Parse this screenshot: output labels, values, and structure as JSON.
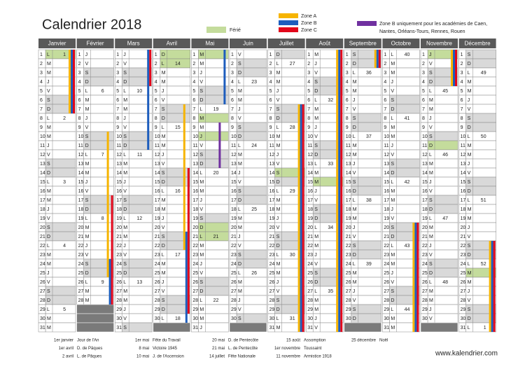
{
  "header": {
    "title": "Calendrier 2018",
    "website": "www.kalendrier.com"
  },
  "legend": {
    "holiday": {
      "label": "Férié",
      "color": "#c4dc9c"
    },
    "zones": [
      {
        "lines": [
          "Zone A"
        ],
        "color": "#f6b400"
      },
      {
        "lines": [
          "Zone B"
        ],
        "color": "#1d5dbd"
      },
      {
        "lines": [
          "Zone C"
        ],
        "color": "#e2071b"
      },
      {
        "lines": [
          "Zone B uniquement pour les académies de Caen,",
          "Nantes, Orléans-Tours, Rennes, Rouen"
        ],
        "color": "#7030a0"
      }
    ]
  },
  "calendar": {
    "weekend_color": "#d9d9d9",
    "empty_color": "#7a7a7a",
    "header_color": "#595959",
    "day_numbers": [
      1,
      2,
      3,
      4,
      5,
      6,
      7,
      8,
      9,
      10,
      11,
      12,
      13,
      14,
      15,
      16,
      17,
      18,
      19,
      20,
      21,
      22,
      23,
      24,
      25,
      26,
      27,
      28,
      29,
      30,
      31
    ],
    "months": [
      {
        "name": "Janvier",
        "weekdays": [
          "L",
          "M",
          "M",
          "J",
          "V",
          "S",
          "D",
          "L",
          "M",
          "M",
          "J",
          "V",
          "S",
          "D",
          "L",
          "M",
          "M",
          "J",
          "V",
          "S",
          "D",
          "L",
          "M",
          "M",
          "J",
          "V",
          "S",
          "D",
          "L",
          "M",
          "M"
        ],
        "week_numbers": [
          1,
          null,
          null,
          null,
          null,
          null,
          null,
          2,
          null,
          null,
          null,
          null,
          null,
          null,
          3,
          null,
          null,
          null,
          null,
          null,
          null,
          4,
          null,
          null,
          null,
          null,
          null,
          null,
          5,
          null,
          null
        ],
        "holidays": [
          1
        ],
        "vacations": [
          {
            "zone": 0,
            "from": 1,
            "to": 7
          },
          {
            "zone": 1,
            "from": 1,
            "to": 7
          },
          {
            "zone": 2,
            "from": 1,
            "to": 7
          }
        ]
      },
      {
        "name": "Février",
        "weekdays": [
          "J",
          "V",
          "S",
          "D",
          "L",
          "M",
          "M",
          "J",
          "V",
          "S",
          "D",
          "L",
          "M",
          "M",
          "J",
          "V",
          "S",
          "D",
          "L",
          "M",
          "M",
          "J",
          "V",
          "S",
          "D",
          "L",
          "M",
          "M"
        ],
        "week_numbers": [
          null,
          null,
          null,
          null,
          6,
          null,
          null,
          null,
          null,
          null,
          null,
          7,
          null,
          null,
          null,
          null,
          null,
          null,
          8,
          null,
          null,
          null,
          null,
          null,
          null,
          9,
          null,
          null
        ],
        "holidays": [],
        "vacations": [
          {
            "zone": 0,
            "from": 10,
            "to": 25
          },
          {
            "zone": 1,
            "from": 24,
            "to": 28
          },
          {
            "zone": 2,
            "from": 17,
            "to": 28
          }
        ]
      },
      {
        "name": "Mars",
        "weekdays": [
          "J",
          "V",
          "S",
          "D",
          "L",
          "M",
          "M",
          "J",
          "V",
          "S",
          "D",
          "L",
          "M",
          "M",
          "J",
          "V",
          "S",
          "D",
          "L",
          "M",
          "M",
          "J",
          "V",
          "S",
          "D",
          "L",
          "M",
          "M",
          "J",
          "V",
          "S"
        ],
        "week_numbers": [
          null,
          null,
          null,
          null,
          10,
          null,
          null,
          null,
          null,
          null,
          null,
          11,
          null,
          null,
          null,
          null,
          null,
          null,
          12,
          null,
          null,
          null,
          null,
          null,
          null,
          13,
          null,
          null,
          null,
          null,
          null
        ],
        "holidays": [],
        "vacations": [
          {
            "zone": 1,
            "from": 1,
            "to": 11
          },
          {
            "zone": 2,
            "from": 1,
            "to": 4
          }
        ]
      },
      {
        "name": "Avril",
        "weekdays": [
          "D",
          "L",
          "M",
          "M",
          "J",
          "V",
          "S",
          "D",
          "L",
          "M",
          "M",
          "J",
          "V",
          "S",
          "D",
          "L",
          "M",
          "M",
          "J",
          "V",
          "S",
          "D",
          "L",
          "M",
          "M",
          "J",
          "V",
          "S",
          "D",
          "L"
        ],
        "week_numbers": [
          null,
          14,
          null,
          null,
          null,
          null,
          null,
          null,
          15,
          null,
          null,
          null,
          null,
          null,
          null,
          16,
          null,
          null,
          null,
          null,
          null,
          null,
          17,
          null,
          null,
          null,
          null,
          null,
          null,
          18
        ],
        "holidays": [
          1,
          2
        ],
        "vacations": [
          {
            "zone": 0,
            "from": 7,
            "to": 22
          },
          {
            "zone": 1,
            "from": 21,
            "to": 30
          },
          {
            "zone": 2,
            "from": 14,
            "to": 29
          }
        ]
      },
      {
        "name": "Mai",
        "weekdays": [
          "M",
          "M",
          "J",
          "V",
          "S",
          "D",
          "L",
          "M",
          "M",
          "J",
          "V",
          "S",
          "D",
          "L",
          "M",
          "M",
          "J",
          "V",
          "S",
          "D",
          "L",
          "M",
          "M",
          "J",
          "V",
          "S",
          "D",
          "L",
          "M",
          "M",
          "J"
        ],
        "week_numbers": [
          null,
          null,
          null,
          null,
          null,
          null,
          19,
          null,
          null,
          null,
          null,
          null,
          null,
          20,
          null,
          null,
          null,
          null,
          null,
          null,
          21,
          null,
          null,
          null,
          null,
          null,
          null,
          22,
          null,
          null,
          null
        ],
        "holidays": [
          1,
          8,
          10,
          20,
          21
        ],
        "vacations": [
          {
            "zone": 1,
            "from": 1,
            "to": 6
          },
          {
            "zone": 3,
            "from": 9,
            "to": 13
          }
        ]
      },
      {
        "name": "Juin",
        "weekdays": [
          "V",
          "S",
          "D",
          "L",
          "M",
          "M",
          "J",
          "V",
          "S",
          "D",
          "L",
          "M",
          "M",
          "J",
          "V",
          "S",
          "D",
          "L",
          "M",
          "M",
          "J",
          "V",
          "S",
          "D",
          "L",
          "M",
          "M",
          "J",
          "V",
          "S"
        ],
        "week_numbers": [
          null,
          null,
          null,
          23,
          null,
          null,
          null,
          null,
          null,
          null,
          24,
          null,
          null,
          null,
          null,
          null,
          null,
          25,
          null,
          null,
          null,
          null,
          null,
          null,
          26,
          null,
          null,
          null,
          null,
          null
        ],
        "holidays": [],
        "vacations": []
      },
      {
        "name": "Juillet",
        "weekdays": [
          "D",
          "L",
          "M",
          "M",
          "J",
          "V",
          "S",
          "D",
          "L",
          "M",
          "M",
          "J",
          "V",
          "S",
          "D",
          "L",
          "M",
          "M",
          "J",
          "V",
          "S",
          "D",
          "L",
          "M",
          "M",
          "J",
          "V",
          "S",
          "D",
          "L",
          "M"
        ],
        "week_numbers": [
          null,
          27,
          null,
          null,
          null,
          null,
          null,
          null,
          28,
          null,
          null,
          null,
          null,
          null,
          null,
          29,
          null,
          null,
          null,
          null,
          null,
          null,
          30,
          null,
          null,
          null,
          null,
          null,
          null,
          31,
          null
        ],
        "holidays": [
          14
        ],
        "vacations": [
          {
            "zone": 0,
            "from": 7,
            "to": 31
          },
          {
            "zone": 1,
            "from": 7,
            "to": 31
          },
          {
            "zone": 2,
            "from": 7,
            "to": 31
          }
        ]
      },
      {
        "name": "Août",
        "weekdays": [
          "M",
          "J",
          "V",
          "S",
          "D",
          "L",
          "M",
          "M",
          "J",
          "V",
          "S",
          "D",
          "L",
          "M",
          "M",
          "J",
          "V",
          "S",
          "D",
          "L",
          "M",
          "M",
          "J",
          "V",
          "S",
          "D",
          "L",
          "M",
          "M",
          "J",
          "V"
        ],
        "week_numbers": [
          null,
          null,
          null,
          null,
          null,
          32,
          null,
          null,
          null,
          null,
          null,
          null,
          33,
          null,
          null,
          null,
          null,
          null,
          null,
          34,
          null,
          null,
          null,
          null,
          null,
          null,
          35,
          null,
          null,
          null,
          null
        ],
        "holidays": [
          15
        ],
        "vacations": [
          {
            "zone": 0,
            "from": 1,
            "to": 31
          },
          {
            "zone": 1,
            "from": 1,
            "to": 31
          },
          {
            "zone": 2,
            "from": 1,
            "to": 31
          }
        ]
      },
      {
        "name": "Septembre",
        "weekdays": [
          "S",
          "D",
          "L",
          "M",
          "M",
          "J",
          "V",
          "S",
          "D",
          "L",
          "M",
          "M",
          "J",
          "V",
          "S",
          "D",
          "L",
          "M",
          "M",
          "J",
          "V",
          "S",
          "D",
          "L",
          "M",
          "M",
          "J",
          "V",
          "S",
          "D"
        ],
        "week_numbers": [
          null,
          null,
          36,
          null,
          null,
          null,
          null,
          null,
          null,
          37,
          null,
          null,
          null,
          null,
          null,
          null,
          38,
          null,
          null,
          null,
          null,
          null,
          null,
          39,
          null,
          null,
          null,
          null,
          null,
          null
        ],
        "holidays": [],
        "vacations": [
          {
            "zone": 0,
            "from": 1,
            "to": 2
          },
          {
            "zone": 1,
            "from": 1,
            "to": 2
          },
          {
            "zone": 2,
            "from": 1,
            "to": 2
          }
        ]
      },
      {
        "name": "Octobre",
        "weekdays": [
          "L",
          "M",
          "M",
          "J",
          "V",
          "S",
          "D",
          "L",
          "M",
          "M",
          "J",
          "V",
          "S",
          "D",
          "L",
          "M",
          "M",
          "J",
          "V",
          "S",
          "D",
          "L",
          "M",
          "M",
          "J",
          "V",
          "S",
          "D",
          "L",
          "M",
          "M"
        ],
        "week_numbers": [
          40,
          null,
          null,
          null,
          null,
          null,
          null,
          41,
          null,
          null,
          null,
          null,
          null,
          null,
          42,
          null,
          null,
          null,
          null,
          null,
          null,
          43,
          null,
          null,
          null,
          null,
          null,
          null,
          44,
          null,
          null
        ],
        "holidays": [],
        "vacations": [
          {
            "zone": 0,
            "from": 20,
            "to": 31
          },
          {
            "zone": 1,
            "from": 20,
            "to": 31
          },
          {
            "zone": 2,
            "from": 20,
            "to": 31
          }
        ]
      },
      {
        "name": "Novembre",
        "weekdays": [
          "J",
          "V",
          "S",
          "D",
          "L",
          "M",
          "M",
          "J",
          "V",
          "S",
          "D",
          "L",
          "M",
          "M",
          "J",
          "V",
          "S",
          "D",
          "L",
          "M",
          "M",
          "J",
          "V",
          "S",
          "D",
          "L",
          "M",
          "M",
          "J",
          "V"
        ],
        "week_numbers": [
          null,
          null,
          null,
          null,
          45,
          null,
          null,
          null,
          null,
          null,
          null,
          46,
          null,
          null,
          null,
          null,
          null,
          null,
          47,
          null,
          null,
          null,
          null,
          null,
          null,
          48,
          null,
          null,
          null,
          null
        ],
        "holidays": [
          1,
          11
        ],
        "vacations": [
          {
            "zone": 0,
            "from": 1,
            "to": 4
          },
          {
            "zone": 1,
            "from": 1,
            "to": 4
          },
          {
            "zone": 2,
            "from": 1,
            "to": 4
          }
        ]
      },
      {
        "name": "Décembre",
        "weekdays": [
          "S",
          "D",
          "L",
          "M",
          "M",
          "J",
          "V",
          "S",
          "D",
          "L",
          "M",
          "M",
          "J",
          "V",
          "S",
          "D",
          "L",
          "M",
          "M",
          "J",
          "V",
          "S",
          "D",
          "L",
          "M",
          "M",
          "J",
          "V",
          "S",
          "D",
          "L"
        ],
        "week_numbers": [
          null,
          null,
          49,
          null,
          null,
          null,
          null,
          null,
          null,
          50,
          null,
          null,
          null,
          null,
          null,
          null,
          51,
          null,
          null,
          null,
          null,
          null,
          null,
          52,
          null,
          null,
          null,
          null,
          null,
          null,
          1
        ],
        "holidays": [
          25
        ],
        "vacations": [
          {
            "zone": 0,
            "from": 22,
            "to": 31
          },
          {
            "zone": 1,
            "from": 22,
            "to": 31
          },
          {
            "zone": 2,
            "from": 22,
            "to": 31
          }
        ]
      }
    ]
  },
  "public_holidays": [
    [
      "1er janvier",
      "Jour de l'An"
    ],
    [
      "1er avril",
      "D. de Pâques"
    ],
    [
      "2 avril",
      "L. de Pâques"
    ],
    [
      "1er mai",
      "Fête du Travail"
    ],
    [
      "8 mai",
      "Victoire 1945"
    ],
    [
      "10 mai",
      "J. de l'Ascension"
    ],
    [
      "20 mai",
      "D. de Pentecôte"
    ],
    [
      "21 mai",
      "L. de Pentecôte"
    ],
    [
      "14 juillet",
      "Fête Nationale"
    ],
    [
      "15 août",
      "Assomption"
    ],
    [
      "1er novembre",
      "Toussaint"
    ],
    [
      "11 novembre",
      "Armistice 1918"
    ],
    [
      "25 décembre",
      "Noël"
    ]
  ]
}
